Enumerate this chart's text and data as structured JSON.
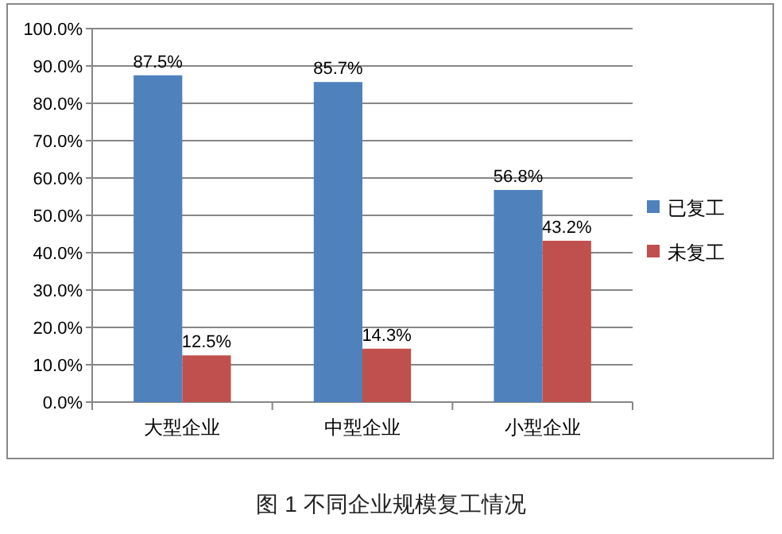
{
  "chart_data": {
    "type": "bar",
    "categories": [
      "大型企业",
      "中型企业",
      "小型企业"
    ],
    "series": [
      {
        "name": "已复工",
        "color": "#4f81bd",
        "values": [
          87.5,
          85.7,
          56.8
        ],
        "value_labels": [
          "87.5%",
          "85.7%",
          "56.8%"
        ]
      },
      {
        "name": "未复工",
        "color": "#c0504d",
        "values": [
          12.5,
          14.3,
          43.2
        ],
        "value_labels": [
          "12.5%",
          "14.3%",
          "43.2%"
        ]
      }
    ],
    "ylim": [
      0,
      100
    ],
    "yticks": [
      {
        "value": 0,
        "label": "0.0%"
      },
      {
        "value": 10,
        "label": "10.0%"
      },
      {
        "value": 20,
        "label": "20.0%"
      },
      {
        "value": 30,
        "label": "30.0%"
      },
      {
        "value": 40,
        "label": "40.0%"
      },
      {
        "value": 50,
        "label": "50.0%"
      },
      {
        "value": 60,
        "label": "60.0%"
      },
      {
        "value": 70,
        "label": "70.0%"
      },
      {
        "value": 80,
        "label": "80.0%"
      },
      {
        "value": 90,
        "label": "90.0%"
      },
      {
        "value": 100,
        "label": "100.0%"
      }
    ],
    "grid": "y",
    "legend": "right",
    "annotations": [
      "图 1 不同企业规模复工情况"
    ]
  }
}
